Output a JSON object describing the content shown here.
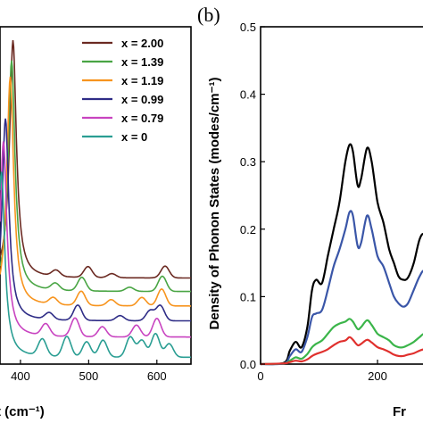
{
  "chart_data": [
    {
      "panel": "a",
      "type": "line",
      "xlabel_visible": "t (cm⁻¹)",
      "xlim": [
        370,
        650
      ],
      "x_ticks": [
        400,
        500,
        600
      ],
      "x_tick_labels": [
        "400",
        "500",
        "600"
      ],
      "grid": false,
      "legend_position": "top-right",
      "series": [
        {
          "name": "x = 2.00",
          "color": "#6b2a22",
          "baseline": 0.255,
          "peak_x": 389,
          "peak_height": 0.705,
          "features": [
            [
              452,
              0.018
            ],
            [
              499,
              0.032
            ],
            [
              534,
              0.012
            ],
            [
              612,
              0.035
            ]
          ]
        },
        {
          "name": "x = 1.39",
          "color": "#49a544",
          "baseline": 0.215,
          "peak_x": 387,
          "peak_height": 0.685,
          "features": [
            [
              451,
              0.02
            ],
            [
              490,
              0.04
            ],
            [
              560,
              0.012
            ],
            [
              608,
              0.045
            ]
          ]
        },
        {
          "name": "x = 1.19",
          "color": "#f7941e",
          "baseline": 0.172,
          "peak_x": 385,
          "peak_height": 0.68,
          "features": [
            [
              448,
              0.02
            ],
            [
              489,
              0.042
            ],
            [
              533,
              0.018
            ],
            [
              578,
              0.025
            ],
            [
              607,
              0.05
            ]
          ]
        },
        {
          "name": "x = 0.99",
          "color": "#2e2c86",
          "baseline": 0.128,
          "peak_x": 378,
          "peak_height": 0.6,
          "features": [
            [
              442,
              0.02
            ],
            [
              484,
              0.045
            ],
            [
              546,
              0.015
            ],
            [
              590,
              0.03
            ],
            [
              605,
              0.045
            ]
          ]
        },
        {
          "name": "x = 0.79",
          "color": "#c843c0",
          "baseline": 0.08,
          "peak_x": 375,
          "peak_height": 0.58,
          "features": [
            [
              437,
              0.035
            ],
            [
              480,
              0.055
            ],
            [
              520,
              0.03
            ],
            [
              570,
              0.035
            ],
            [
              600,
              0.055
            ]
          ]
        },
        {
          "name": "x = 0",
          "color": "#2a9e93",
          "baseline": 0.02,
          "peak_x": 372,
          "peak_height": 0.55,
          "features": [
            [
              432,
              0.05
            ],
            [
              468,
              0.06
            ],
            [
              497,
              0.045
            ],
            [
              521,
              0.05
            ],
            [
              561,
              0.06
            ],
            [
              578,
              0.05
            ],
            [
              598,
              0.07
            ],
            [
              618,
              0.04
            ]
          ]
        }
      ]
    },
    {
      "panel": "b",
      "panel_label": "(b)",
      "type": "line",
      "ylabel": "Density of Phonon States (modes/cm⁻¹)",
      "xlabel_visible": "Fr",
      "xlim": [
        0,
        290
      ],
      "ylim": [
        0,
        0.5
      ],
      "x_ticks": [
        0,
        200
      ],
      "x_tick_labels": [
        "0",
        "200"
      ],
      "y_ticks": [
        0,
        0.1,
        0.2,
        0.3,
        0.4,
        0.5
      ],
      "y_tick_labels": [
        "0.0",
        "0.1",
        "0.2",
        "0.3",
        "0.4",
        "0.5"
      ],
      "grid": false,
      "series": [
        {
          "color": "#000000",
          "points": [
            [
              0,
              0
            ],
            [
              40,
              0.002
            ],
            [
              50,
              0.02
            ],
            [
              60,
              0.033
            ],
            [
              70,
              0.025
            ],
            [
              80,
              0.055
            ],
            [
              88,
              0.11
            ],
            [
              95,
              0.125
            ],
            [
              105,
              0.12
            ],
            [
              115,
              0.16
            ],
            [
              125,
              0.2
            ],
            [
              135,
              0.24
            ],
            [
              145,
              0.3
            ],
            [
              152,
              0.325
            ],
            [
              158,
              0.315
            ],
            [
              166,
              0.265
            ],
            [
              172,
              0.275
            ],
            [
              182,
              0.32
            ],
            [
              190,
              0.3
            ],
            [
              200,
              0.24
            ],
            [
              210,
              0.21
            ],
            [
              220,
              0.17
            ],
            [
              228,
              0.15
            ],
            [
              236,
              0.13
            ],
            [
              244,
              0.125
            ],
            [
              252,
              0.128
            ],
            [
              262,
              0.15
            ],
            [
              272,
              0.185
            ],
            [
              280,
              0.192
            ],
            [
              290,
              0.17
            ]
          ]
        },
        {
          "color": "#3a56a8",
          "points": [
            [
              0,
              0
            ],
            [
              40,
              0.001
            ],
            [
              50,
              0.012
            ],
            [
              60,
              0.022
            ],
            [
              70,
              0.018
            ],
            [
              80,
              0.04
            ],
            [
              88,
              0.07
            ],
            [
              95,
              0.075
            ],
            [
              105,
              0.08
            ],
            [
              115,
              0.11
            ],
            [
              125,
              0.145
            ],
            [
              135,
              0.17
            ],
            [
              145,
              0.2
            ],
            [
              152,
              0.225
            ],
            [
              158,
              0.22
            ],
            [
              166,
              0.175
            ],
            [
              172,
              0.18
            ],
            [
              182,
              0.22
            ],
            [
              190,
              0.2
            ],
            [
              200,
              0.16
            ],
            [
              210,
              0.145
            ],
            [
              220,
              0.12
            ],
            [
              228,
              0.1
            ],
            [
              236,
              0.09
            ],
            [
              244,
              0.085
            ],
            [
              252,
              0.09
            ],
            [
              262,
              0.11
            ],
            [
              272,
              0.13
            ],
            [
              280,
              0.138
            ],
            [
              290,
              0.12
            ]
          ]
        },
        {
          "color": "#3bb54a",
          "points": [
            [
              0,
              0
            ],
            [
              40,
              0.001
            ],
            [
              50,
              0.005
            ],
            [
              60,
              0.01
            ],
            [
              70,
              0.008
            ],
            [
              80,
              0.015
            ],
            [
              88,
              0.025
            ],
            [
              95,
              0.03
            ],
            [
              105,
              0.035
            ],
            [
              115,
              0.045
            ],
            [
              125,
              0.055
            ],
            [
              135,
              0.06
            ],
            [
              145,
              0.063
            ],
            [
              152,
              0.067
            ],
            [
              158,
              0.063
            ],
            [
              166,
              0.052
            ],
            [
              172,
              0.055
            ],
            [
              182,
              0.065
            ],
            [
              190,
              0.058
            ],
            [
              200,
              0.045
            ],
            [
              210,
              0.04
            ],
            [
              220,
              0.035
            ],
            [
              228,
              0.028
            ],
            [
              236,
              0.025
            ],
            [
              244,
              0.025
            ],
            [
              252,
              0.028
            ],
            [
              262,
              0.033
            ],
            [
              272,
              0.04
            ],
            [
              280,
              0.045
            ],
            [
              290,
              0.04
            ]
          ]
        },
        {
          "color": "#e0302d",
          "points": [
            [
              0,
              0
            ],
            [
              40,
              0.001
            ],
            [
              50,
              0.003
            ],
            [
              60,
              0.005
            ],
            [
              70,
              0.004
            ],
            [
              80,
              0.007
            ],
            [
              88,
              0.012
            ],
            [
              95,
              0.015
            ],
            [
              105,
              0.018
            ],
            [
              115,
              0.022
            ],
            [
              125,
              0.028
            ],
            [
              135,
              0.033
            ],
            [
              145,
              0.035
            ],
            [
              152,
              0.04
            ],
            [
              158,
              0.036
            ],
            [
              166,
              0.028
            ],
            [
              172,
              0.03
            ],
            [
              182,
              0.036
            ],
            [
              190,
              0.032
            ],
            [
              200,
              0.025
            ],
            [
              210,
              0.022
            ],
            [
              220,
              0.018
            ],
            [
              228,
              0.014
            ],
            [
              236,
              0.012
            ],
            [
              244,
              0.012
            ],
            [
              252,
              0.014
            ],
            [
              262,
              0.016
            ],
            [
              272,
              0.02
            ],
            [
              280,
              0.022
            ],
            [
              290,
              0.02
            ]
          ]
        }
      ]
    }
  ]
}
